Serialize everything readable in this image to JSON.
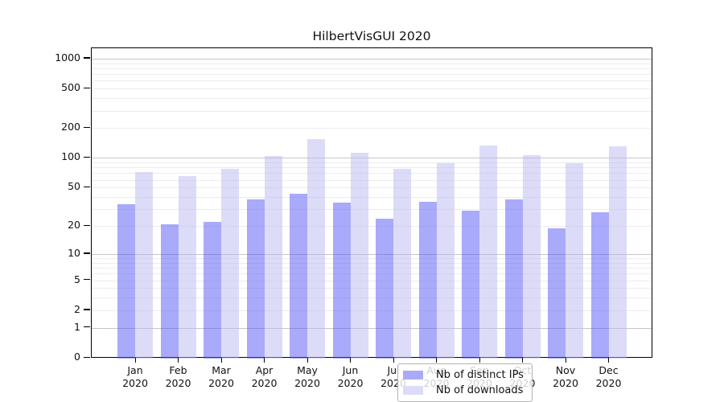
{
  "title": "HilbertVisGUI 2020",
  "colors": {
    "distinct_ips_bar": "#aaaaf8",
    "downloads_bar": "#dcdcf8",
    "major_gridline": "#c6c6c6",
    "minor_gridline": "#ececec",
    "axis": "#000000"
  },
  "legend": {
    "items": [
      {
        "label": "Nb of distinct IPs",
        "swatch": "distinct-ips-swatch"
      },
      {
        "label": "Nb of downloads",
        "swatch": "downloads-swatch"
      }
    ],
    "position": "inside-bottom-center"
  },
  "chart_data": {
    "type": "bar",
    "title": "HilbertVisGUI 2020",
    "categories": [
      "Jan 2020",
      "Feb 2020",
      "Mar 2020",
      "Apr 2020",
      "May 2020",
      "Jun 2020",
      "Jul 2020",
      "Aug 2020",
      "Sep 2020",
      "Oct 2020",
      "Nov 2020",
      "Dec 2020"
    ],
    "months": [
      "Jan",
      "Feb",
      "Mar",
      "Apr",
      "May",
      "Jun",
      "Jul",
      "Aug",
      "Sep",
      "Oct",
      "Nov",
      "Dec"
    ],
    "year_label": "2020",
    "series": [
      {
        "name": "Nb of distinct IPs",
        "color": "#aaaaf8",
        "values": [
          34,
          21,
          22,
          38,
          43,
          35,
          24,
          36,
          29,
          38,
          19,
          28
        ]
      },
      {
        "name": "Nb of downloads",
        "color": "#dcdcf8",
        "values": [
          72,
          65,
          78,
          105,
          155,
          113,
          78,
          89,
          133,
          107,
          88,
          130
        ]
      }
    ],
    "xlabel": "",
    "ylabel": "",
    "yscale": "log1p",
    "ytick_values": [
      0,
      1,
      2,
      5,
      10,
      20,
      50,
      100,
      200,
      500,
      1000
    ],
    "ytick_labels": [
      "0",
      "1",
      "2",
      "5",
      "10",
      "20",
      "50",
      "100",
      "200",
      "500",
      "1000"
    ],
    "major_gridlines_at": [
      1,
      10,
      100,
      1000
    ],
    "minor_gridlines": "2-9, 20-90, 200-900 (log spacing)",
    "ylim": [
      0,
      1280
    ],
    "grid": "horizontal",
    "legend_position": "lower center (inside plot)"
  }
}
